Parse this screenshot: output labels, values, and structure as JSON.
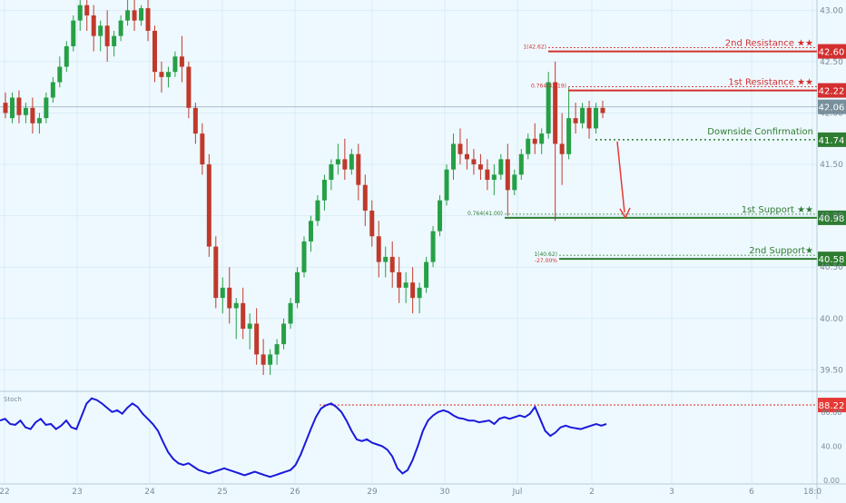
{
  "chart_data": {
    "type": "candlestick",
    "grid": true,
    "price_axis": {
      "ylim": [
        39.3,
        43.1
      ],
      "ticks": [
        "43.00",
        "42.50",
        "42.00",
        "41.50",
        "41.00",
        "40.50",
        "40.00",
        "39.50"
      ],
      "current_price": "42.06"
    },
    "time_axis": {
      "labels": [
        "22",
        "23",
        "24",
        "25",
        "26",
        "29",
        "30",
        "Jul",
        "2",
        "3",
        "6",
        "18:0"
      ]
    },
    "levels": [
      {
        "label": "2nd Resistance ★★",
        "price": 42.6,
        "price_text": "42.60",
        "color": "#d32f2f",
        "style": "solid",
        "fib_text": "1(42.62)"
      },
      {
        "label": "1st Resistance ★★",
        "price": 42.22,
        "price_text": "42.22",
        "color": "#d32f2f",
        "style": "solid",
        "fib_text": "0.764(42.19)"
      },
      {
        "label": "Downside Confirmation",
        "price": 41.74,
        "price_text": "41.74",
        "color": "#2e7d32",
        "style": "dotted",
        "fib_text": ""
      },
      {
        "label": "1st Support ★★",
        "price": 40.98,
        "price_text": "40.98",
        "color": "#2e7d32",
        "style": "solid",
        "fib_text": "0.764(41.00)"
      },
      {
        "label": "2nd Support★",
        "price": 40.58,
        "price_text": "40.58",
        "color": "#2e7d32",
        "style": "solid",
        "fib_text": "1(40.62)",
        "fib_text2": "-27.00%"
      }
    ],
    "arrow": {
      "from_price": 41.74,
      "to_price": 40.98,
      "color": "#e53935"
    },
    "candles": [
      [
        42.1,
        42.2,
        42.0,
        41.95
      ],
      [
        41.95,
        42.2,
        42.15,
        41.9
      ],
      [
        42.15,
        42.22,
        41.98,
        41.9
      ],
      [
        41.98,
        42.1,
        42.05,
        41.9
      ],
      [
        42.05,
        42.15,
        41.9,
        41.8
      ],
      [
        41.9,
        42.0,
        41.95,
        41.8
      ],
      [
        41.95,
        42.2,
        42.15,
        41.9
      ],
      [
        42.15,
        42.35,
        42.3,
        42.1
      ],
      [
        42.3,
        42.55,
        42.45,
        42.25
      ],
      [
        42.45,
        42.7,
        42.65,
        42.4
      ],
      [
        42.65,
        42.95,
        42.9,
        42.6
      ],
      [
        42.9,
        43.1,
        43.05,
        42.8
      ],
      [
        43.05,
        43.1,
        42.95,
        42.8
      ],
      [
        42.95,
        43.05,
        42.75,
        42.6
      ],
      [
        42.75,
        42.9,
        42.85,
        42.6
      ],
      [
        42.85,
        43.0,
        42.65,
        42.5
      ],
      [
        42.65,
        42.8,
        42.75,
        42.55
      ],
      [
        42.75,
        42.95,
        42.9,
        42.7
      ],
      [
        42.9,
        43.1,
        43.0,
        42.85
      ],
      [
        43.0,
        43.1,
        42.9,
        42.8
      ],
      [
        42.9,
        43.05,
        43.02,
        42.85
      ],
      [
        43.02,
        43.1,
        42.8,
        42.7
      ],
      [
        42.8,
        42.85,
        42.4,
        42.3
      ],
      [
        42.4,
        42.5,
        42.35,
        42.2
      ],
      [
        42.35,
        42.45,
        42.4,
        42.25
      ],
      [
        42.4,
        42.6,
        42.55,
        42.35
      ],
      [
        42.55,
        42.75,
        42.45,
        42.3
      ],
      [
        42.45,
        42.5,
        42.05,
        41.95
      ],
      [
        42.05,
        42.1,
        41.8,
        41.7
      ],
      [
        41.8,
        41.9,
        41.5,
        41.4
      ],
      [
        41.5,
        41.6,
        40.7,
        40.6
      ],
      [
        40.7,
        40.8,
        40.2,
        40.1
      ],
      [
        40.2,
        40.4,
        40.3,
        40.05
      ],
      [
        40.3,
        40.5,
        40.1,
        39.95
      ],
      [
        40.1,
        40.2,
        40.15,
        39.8
      ],
      [
        40.15,
        40.3,
        39.9,
        39.8
      ],
      [
        39.9,
        40.05,
        39.95,
        39.7
      ],
      [
        39.95,
        40.1,
        39.65,
        39.55
      ],
      [
        39.65,
        39.8,
        39.55,
        39.45
      ],
      [
        39.55,
        39.7,
        39.65,
        39.45
      ],
      [
        39.65,
        39.8,
        39.75,
        39.55
      ],
      [
        39.75,
        40.0,
        39.95,
        39.7
      ],
      [
        39.95,
        40.2,
        40.15,
        39.9
      ],
      [
        40.15,
        40.5,
        40.45,
        40.1
      ],
      [
        40.45,
        40.8,
        40.75,
        40.4
      ],
      [
        40.75,
        41.0,
        40.95,
        40.65
      ],
      [
        40.95,
        41.2,
        41.15,
        40.9
      ],
      [
        41.15,
        41.4,
        41.35,
        41.05
      ],
      [
        41.35,
        41.55,
        41.5,
        41.25
      ],
      [
        41.5,
        41.7,
        41.55,
        41.4
      ],
      [
        41.55,
        41.75,
        41.45,
        41.35
      ],
      [
        41.45,
        41.65,
        41.6,
        41.4
      ],
      [
        41.6,
        41.7,
        41.3,
        41.15
      ],
      [
        41.3,
        41.4,
        41.05,
        40.9
      ],
      [
        41.05,
        41.15,
        40.8,
        40.7
      ],
      [
        40.8,
        40.95,
        40.55,
        40.4
      ],
      [
        40.55,
        40.7,
        40.6,
        40.4
      ],
      [
        40.6,
        40.75,
        40.45,
        40.3
      ],
      [
        40.45,
        40.6,
        40.3,
        40.15
      ],
      [
        40.3,
        40.45,
        40.35,
        40.15
      ],
      [
        40.35,
        40.5,
        40.2,
        40.05
      ],
      [
        40.2,
        40.35,
        40.3,
        40.05
      ],
      [
        40.3,
        40.6,
        40.55,
        40.25
      ],
      [
        40.55,
        40.9,
        40.85,
        40.5
      ],
      [
        40.85,
        41.2,
        41.15,
        40.8
      ],
      [
        41.15,
        41.5,
        41.45,
        41.1
      ],
      [
        41.45,
        41.8,
        41.7,
        41.35
      ],
      [
        41.7,
        41.85,
        41.6,
        41.5
      ],
      [
        41.6,
        41.75,
        41.55,
        41.45
      ],
      [
        41.55,
        41.65,
        41.5,
        41.4
      ],
      [
        41.5,
        41.6,
        41.45,
        41.35
      ],
      [
        41.45,
        41.55,
        41.35,
        41.25
      ],
      [
        41.35,
        41.5,
        41.4,
        41.2
      ],
      [
        41.4,
        41.6,
        41.55,
        41.35
      ],
      [
        41.55,
        41.7,
        41.25,
        41.0
      ],
      [
        41.25,
        41.45,
        41.4,
        41.2
      ],
      [
        41.4,
        41.65,
        41.6,
        41.35
      ],
      [
        41.6,
        41.8,
        41.75,
        41.55
      ],
      [
        41.75,
        41.9,
        41.7,
        41.6
      ],
      [
        41.7,
        41.85,
        41.8,
        41.6
      ],
      [
        41.8,
        42.4,
        42.3,
        41.75
      ],
      [
        42.3,
        42.5,
        41.7,
        40.95
      ],
      [
        41.7,
        42.0,
        41.6,
        41.3
      ],
      [
        41.6,
        42.25,
        41.95,
        41.55
      ],
      [
        41.95,
        42.1,
        41.9,
        41.8
      ],
      [
        41.9,
        42.1,
        42.05,
        41.85
      ],
      [
        42.05,
        42.12,
        41.85,
        41.75
      ],
      [
        41.85,
        42.1,
        42.05,
        41.8
      ],
      [
        42.05,
        42.12,
        42.0,
        41.95
      ]
    ]
  },
  "stoch": {
    "title": "Stoch",
    "ticks": [
      "80.00",
      "40.00",
      "0.00"
    ],
    "level_text": "88.22",
    "level": 88.22,
    "ylim": [
      0,
      100
    ],
    "values": [
      70,
      72,
      66,
      65,
      70,
      62,
      60,
      68,
      72,
      65,
      66,
      60,
      64,
      70,
      62,
      60,
      75,
      90,
      96,
      94,
      90,
      85,
      80,
      82,
      78,
      85,
      90,
      86,
      78,
      72,
      66,
      58,
      45,
      33,
      25,
      20,
      18,
      20,
      16,
      12,
      10,
      8,
      10,
      12,
      14,
      12,
      10,
      8,
      6,
      8,
      10,
      8,
      6,
      4,
      6,
      8,
      10,
      12,
      18,
      30,
      45,
      60,
      74,
      84,
      88,
      90,
      86,
      80,
      70,
      58,
      48,
      46,
      48,
      44,
      42,
      40,
      36,
      28,
      14,
      8,
      12,
      24,
      40,
      58,
      70,
      76,
      80,
      82,
      80,
      76,
      73,
      72,
      70,
      70,
      68,
      69,
      70,
      66,
      72,
      74,
      72,
      74,
      76,
      74,
      78,
      86,
      72,
      58,
      52,
      56,
      62,
      64,
      62,
      61,
      60,
      62,
      64,
      66,
      64,
      66
    ]
  }
}
